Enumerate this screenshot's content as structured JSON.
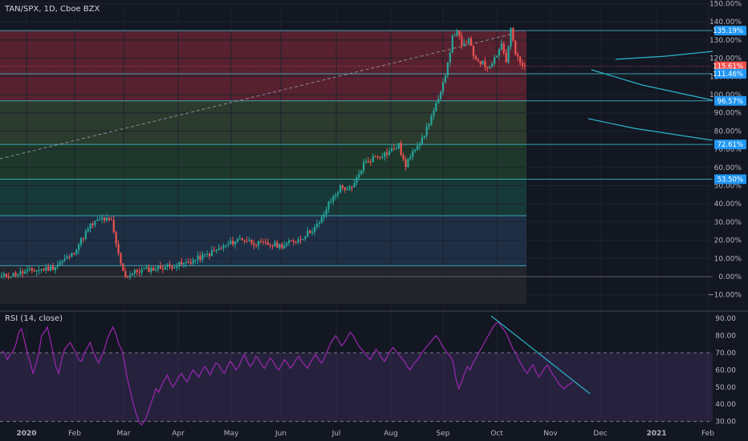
{
  "header": {
    "title": "TAN/SPX, 1D, Cboe BZX"
  },
  "rsi_header": {
    "title": "RSI (14, close)"
  },
  "colors": {
    "background": "#131722",
    "grid": "#1e222d",
    "up": "#26a69a",
    "down": "#ef5350",
    "fib_line": "#3fb8c9",
    "rsi": "#9c27b0",
    "trend": "#2ab3c9",
    "price_tag": "#ef5350",
    "level_tag": "#2196f3"
  },
  "chart_data": [
    {
      "type": "candlestick",
      "name": "TAN/SPX",
      "x_ticks": [
        "2020",
        "Feb",
        "Mar",
        "Apr",
        "May",
        "Jun",
        "Jul",
        "Aug",
        "Sep",
        "Oct",
        "Nov",
        "Dec",
        "2021",
        "Feb"
      ],
      "y_ticks": [
        "150.00%",
        "140.00%",
        "130.00%",
        "120.00%",
        "110.00%",
        "100.00%",
        "90.00%",
        "80.00%",
        "70.00%",
        "60.00%",
        "50.00%",
        "40.00%",
        "30.00%",
        "20.00%",
        "10.00%",
        "0.00%",
        "−10.00%"
      ],
      "y_tick_values": [
        150,
        140,
        130,
        120,
        110,
        100,
        90,
        80,
        70,
        60,
        50,
        40,
        30,
        20,
        10,
        0,
        -10
      ],
      "ylim": [
        -15,
        153
      ],
      "current_value": 115.61,
      "price_labels": [
        "135.19%",
        "115.61%",
        "111.46%",
        "96.57%",
        "72.61%",
        "53.50%"
      ],
      "fib_levels": [
        135.19,
        111.46,
        96.57,
        72.61,
        53.5,
        33.5,
        6.0
      ],
      "key_points": [
        [
          0,
          0
        ],
        [
          10,
          2.5
        ],
        [
          22,
          5
        ],
        [
          30,
          12
        ],
        [
          38,
          28
        ],
        [
          43,
          32
        ],
        [
          47,
          30
        ],
        [
          50,
          12
        ],
        [
          53,
          0
        ],
        [
          58,
          3
        ],
        [
          68,
          5
        ],
        [
          78,
          7
        ],
        [
          88,
          12
        ],
        [
          96,
          17
        ],
        [
          102,
          21
        ],
        [
          110,
          18
        ],
        [
          120,
          17
        ],
        [
          128,
          21
        ],
        [
          136,
          29
        ],
        [
          140,
          40
        ],
        [
          145,
          49
        ],
        [
          150,
          48
        ],
        [
          155,
          62
        ],
        [
          160,
          66
        ],
        [
          165,
          68
        ],
        [
          170,
          72
        ],
        [
          173,
          60
        ],
        [
          176,
          70
        ],
        [
          180,
          75
        ],
        [
          184,
          88
        ],
        [
          188,
          100
        ],
        [
          191,
          118
        ],
        [
          193,
          131
        ],
        [
          195,
          136
        ],
        [
          197,
          126
        ],
        [
          200,
          130
        ],
        [
          202,
          121
        ],
        [
          205,
          118
        ],
        [
          208,
          115
        ],
        [
          211,
          120
        ],
        [
          214,
          128
        ],
        [
          216,
          118
        ],
        [
          218,
          136
        ],
        [
          220,
          122
        ],
        [
          222,
          117
        ],
        [
          224,
          115.6
        ]
      ],
      "series": [
        {
          "name": "TAN/SPX",
          "seed": 11
        }
      ]
    },
    {
      "type": "line",
      "name": "RSI (14, close)",
      "y_ticks": [
        "90.00",
        "80.00",
        "70.00",
        "60.00",
        "50.00",
        "40.00",
        "30.00"
      ],
      "y_tick_values": [
        90,
        80,
        70,
        60,
        50,
        40,
        30
      ],
      "ylim": [
        26,
        94
      ],
      "bands": [
        30,
        70
      ],
      "values": [
        71,
        70,
        66,
        69,
        71,
        75,
        82,
        84,
        77,
        70,
        64,
        58,
        63,
        70,
        80,
        82,
        85,
        78,
        70,
        62,
        58,
        66,
        72,
        74,
        76,
        73,
        70,
        66,
        65,
        70,
        73,
        76,
        71,
        67,
        64,
        68,
        72,
        78,
        82,
        85,
        81,
        75,
        72,
        65,
        55,
        48,
        41,
        35,
        30,
        28,
        30,
        34,
        39,
        44,
        49,
        47,
        51,
        54,
        57,
        53,
        50,
        53,
        56,
        58,
        55,
        53,
        57,
        60,
        58,
        56,
        59,
        62,
        60,
        57,
        61,
        64,
        63,
        60,
        58,
        62,
        65,
        63,
        60,
        62,
        66,
        69,
        65,
        62,
        64,
        68,
        66,
        63,
        61,
        64,
        67,
        65,
        62,
        60,
        63,
        66,
        64,
        61,
        63,
        66,
        68,
        65,
        63,
        61,
        64,
        67,
        69,
        66,
        64,
        67,
        71,
        75,
        78,
        80,
        77,
        74,
        76,
        79,
        82,
        80,
        77,
        74,
        72,
        70,
        68,
        66,
        69,
        72,
        70,
        67,
        65,
        68,
        71,
        73,
        71,
        69,
        67,
        65,
        62,
        60,
        63,
        65,
        67,
        70,
        72,
        74,
        76,
        78,
        80,
        78,
        75,
        72,
        70,
        68,
        65,
        55,
        49,
        53,
        58,
        62,
        60,
        64,
        67,
        70,
        73,
        76,
        79,
        82,
        85,
        87,
        88,
        85,
        83,
        80,
        76,
        72,
        70,
        66,
        63,
        60,
        58,
        61,
        63,
        59,
        56,
        58,
        61,
        63,
        60,
        57,
        55,
        52,
        50,
        49,
        51,
        52,
        53
      ],
      "trend_lines": [
        [
          [
            612,
            394
          ],
          [
            735,
            491
          ]
        ]
      ]
    }
  ]
}
